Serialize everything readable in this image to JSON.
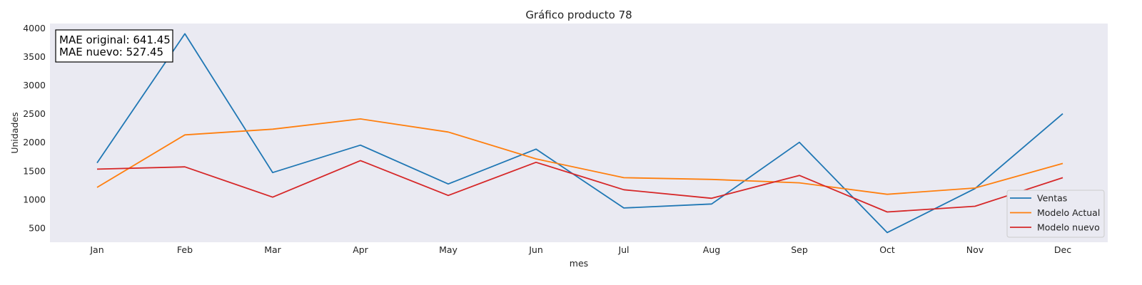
{
  "chart_data": {
    "type": "line",
    "title": "Gráfico producto 78",
    "xlabel": "mes",
    "ylabel": "Unidades",
    "categories": [
      "Jan",
      "Feb",
      "Mar",
      "Apr",
      "May",
      "Jun",
      "Jul",
      "Aug",
      "Sep",
      "Oct",
      "Nov",
      "Dec"
    ],
    "ylim": [
      250,
      4080
    ],
    "yticks": [
      500,
      1000,
      1500,
      2000,
      2500,
      3000,
      3500,
      4000
    ],
    "grid": false,
    "legend_position": "lower-right",
    "background_color": "#eaeaf2",
    "series": [
      {
        "name": "Ventas",
        "color": "#1f77b4",
        "values": [
          1640,
          3900,
          1470,
          1950,
          1270,
          1880,
          850,
          920,
          2000,
          420,
          1190,
          2500
        ]
      },
      {
        "name": "Modelo Actual",
        "color": "#ff7f0e",
        "values": [
          1210,
          2130,
          2230,
          2410,
          2180,
          1710,
          1380,
          1350,
          1290,
          1090,
          1200,
          1630
        ]
      },
      {
        "name": "Modelo nuevo",
        "color": "#d62728",
        "values": [
          1530,
          1570,
          1040,
          1680,
          1070,
          1650,
          1170,
          1020,
          1420,
          780,
          880,
          1380
        ]
      }
    ],
    "annotation": [
      "MAE original: 641.45",
      "MAE nuevo: 527.45"
    ]
  }
}
